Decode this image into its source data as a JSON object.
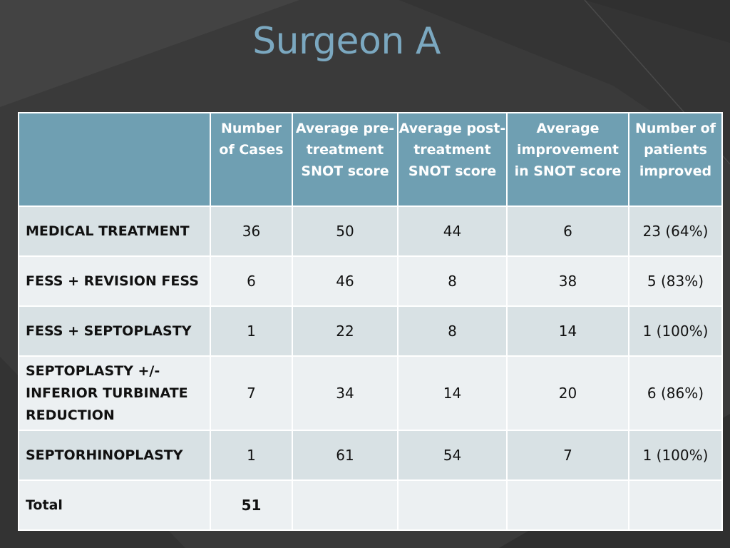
{
  "slide": {
    "title": "Surgeon A"
  },
  "table": {
    "headers": [
      "",
      "Number of Cases",
      "Average pre-treatment SNOT score",
      "Average post-treatment SNOT score",
      "Average improvement in SNOT score",
      "Number of patients improved"
    ],
    "rows": [
      {
        "label": "MEDICAL TREATMENT",
        "cases": "36",
        "pre": "50",
        "post": "44",
        "improvement": "6",
        "improved": "23  (64%)"
      },
      {
        "label": "FESS + REVISION FESS",
        "cases": "6",
        "pre": "46",
        "post": "8",
        "improvement": "38",
        "improved": "5  (83%)"
      },
      {
        "label": "FESS + SEPTOPLASTY",
        "cases": "1",
        "pre": "22",
        "post": "8",
        "improvement": "14",
        "improved": "1  (100%)"
      },
      {
        "label": "SEPTOPLASTY +/- INFERIOR TURBINATE REDUCTION",
        "cases": "7",
        "pre": "34",
        "post": "14",
        "improvement": "20",
        "improved": "6  (86%)"
      },
      {
        "label": "SEPTORHINOPLASTY",
        "cases": "1",
        "pre": "61",
        "post": "54",
        "improvement": "7",
        "improved": "1  (100%)"
      },
      {
        "label": "Total",
        "cases": "51",
        "pre": "",
        "post": "",
        "improvement": "",
        "improved": ""
      }
    ]
  },
  "colors": {
    "background": "#3a3a3a",
    "title": "#7ba8c0",
    "header": "#6f9fb2",
    "row_dark": "#d8e1e4",
    "row_light": "#ecf0f2"
  }
}
